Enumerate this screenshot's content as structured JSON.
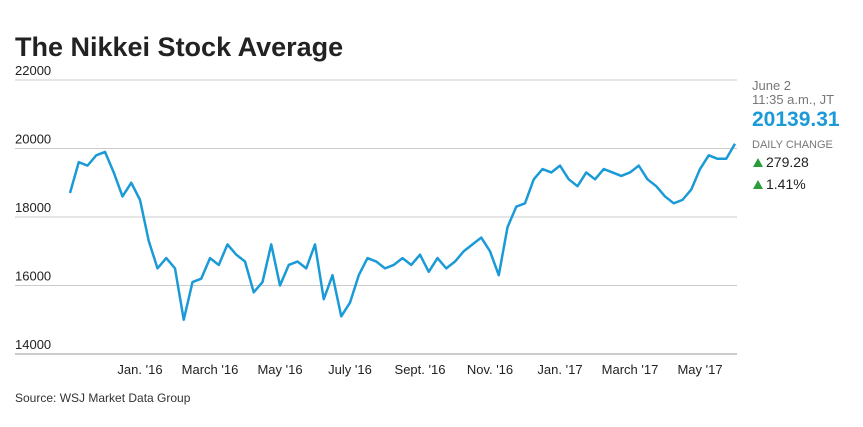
{
  "chart_data": {
    "type": "line",
    "title": "The Nikkei Stock Average",
    "source": "Source: WSJ Market Data Group",
    "latest": {
      "date": "June 2",
      "time": "11:35 a.m., JT",
      "value": "20139.31",
      "change_label": "DAILY CHANGE",
      "change": "279.28",
      "change_pct": "1.41%"
    },
    "categories": [
      null,
      null,
      null,
      null,
      null,
      null,
      null,
      null,
      "Jan. '16",
      null,
      null,
      null,
      null,
      null,
      null,
      null,
      "March '16",
      null,
      null,
      null,
      null,
      null,
      null,
      null,
      "May '16",
      null,
      null,
      null,
      null,
      null,
      null,
      null,
      "July '16",
      null,
      null,
      null,
      null,
      null,
      null,
      null,
      "Sept. '16",
      null,
      null,
      null,
      null,
      null,
      null,
      null,
      "Nov. '16",
      null,
      null,
      null,
      null,
      null,
      null,
      null,
      "Jan. '17",
      null,
      null,
      null,
      null,
      null,
      null,
      null,
      "March '17",
      null,
      null,
      null,
      null,
      null,
      null,
      null,
      "May '17",
      null,
      null,
      null,
      null
    ],
    "series": [
      {
        "name": "Nikkei",
        "color": "#1a9ad6",
        "values": [
          18700,
          19600,
          19500,
          19800,
          19900,
          19300,
          18600,
          19000,
          18500,
          17300,
          16500,
          16800,
          16500,
          15000,
          16100,
          16200,
          16800,
          16600,
          17200,
          16900,
          16700,
          15800,
          16100,
          17200,
          16000,
          16600,
          16700,
          16500,
          17200,
          15600,
          16300,
          15100,
          15500,
          16300,
          16800,
          16700,
          16500,
          16600,
          16800,
          16600,
          16900,
          16400,
          16800,
          16500,
          16700,
          17000,
          17200,
          17400,
          17000,
          16300,
          17700,
          18300,
          18400,
          19100,
          19400,
          19300,
          19500,
          19100,
          18900,
          19300,
          19100,
          19400,
          19300,
          19200,
          19300,
          19500,
          19100,
          18900,
          18600,
          18400,
          18500,
          18800,
          19400,
          19800,
          19700,
          19700,
          20140
        ]
      }
    ],
    "ylim": [
      14000,
      22000
    ],
    "yticks": [
      14000,
      16000,
      18000,
      20000,
      22000
    ],
    "grid": true
  }
}
